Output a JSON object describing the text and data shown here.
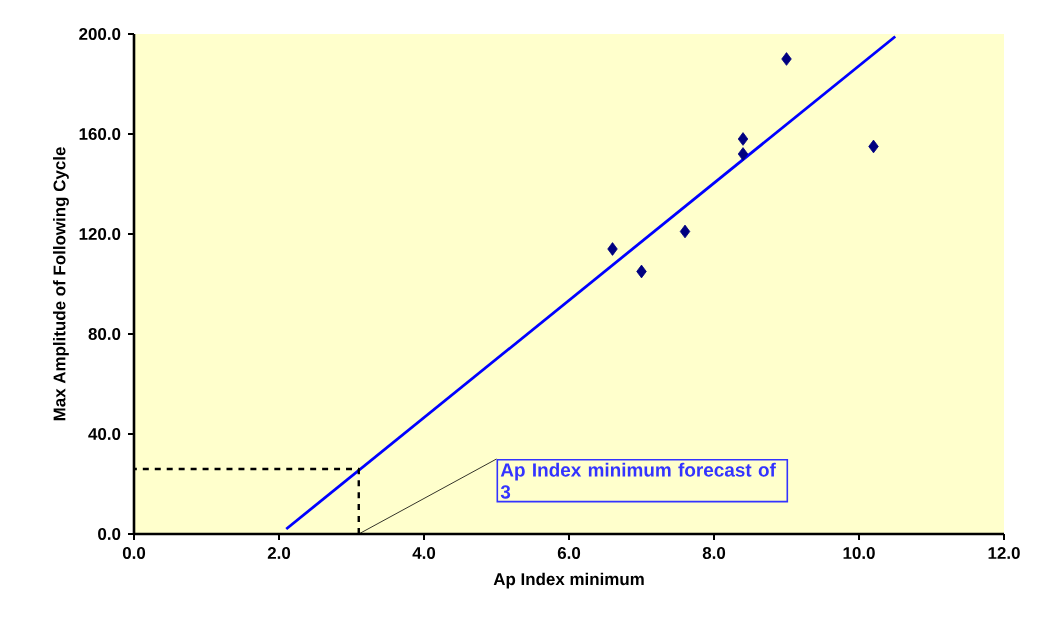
{
  "chart_data": {
    "type": "scatter",
    "xlabel": "Ap Index minimum",
    "ylabel": "Max Amplitude of Following Cycle",
    "xlim": [
      0,
      12
    ],
    "ylim": [
      0,
      200
    ],
    "xticks": [
      {
        "value": 0,
        "label": "0.0"
      },
      {
        "value": 2,
        "label": "2.0"
      },
      {
        "value": 4,
        "label": "4.0"
      },
      {
        "value": 6,
        "label": "6.0"
      },
      {
        "value": 8,
        "label": "8.0"
      },
      {
        "value": 10,
        "label": "10.0"
      },
      {
        "value": 12,
        "label": "12.0"
      }
    ],
    "yticks": [
      {
        "value": 0,
        "label": "0.0"
      },
      {
        "value": 40,
        "label": "40.0"
      },
      {
        "value": 80,
        "label": "80.0"
      },
      {
        "value": 120,
        "label": "120.0"
      },
      {
        "value": 160,
        "label": "160.0"
      },
      {
        "value": 200,
        "label": "200.0"
      }
    ],
    "grid": false,
    "series": [
      {
        "color": "#000080",
        "marker": "diamond",
        "x": [
          6.6,
          7.0,
          7.6,
          8.4,
          8.4,
          9.0,
          10.2
        ],
        "values": [
          114,
          105,
          121,
          158,
          152,
          190,
          155
        ]
      },
      {
        "type": "line",
        "color": "#0000ff",
        "marker": "none",
        "line_style": "solid",
        "x": [
          2.1,
          10.5
        ],
        "values": [
          2,
          199
        ]
      },
      {
        "type": "line",
        "color": "#000000",
        "marker": "none",
        "line_style": "dashed",
        "x": [
          3.1,
          3.1,
          0
        ],
        "values": [
          0,
          26,
          26
        ]
      }
    ],
    "annotations": [
      {
        "text": "Ap Index minimum forecast of 3",
        "x": 3.1,
        "y": 0
      }
    ]
  }
}
